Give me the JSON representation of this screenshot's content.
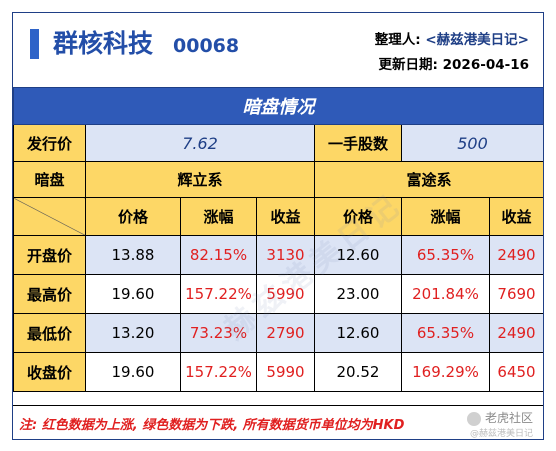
{
  "header": {
    "company": "群核科技",
    "code": "00068",
    "organizer_label": "整理人:",
    "organizer": "<赫兹港美日记>",
    "updated_label": "更新日期:",
    "updated_date": "2026-04-16"
  },
  "table": {
    "banner": "暗盘情况",
    "issue_price_label": "发行价",
    "issue_price": "7.62",
    "lot_label": "一手股数",
    "lot_size": "500",
    "dark_label": "暗盘",
    "broker_a": "辉立系",
    "broker_b": "富途系",
    "col_price": "价格",
    "col_change": "涨幅",
    "col_profit": "收益",
    "rows": [
      {
        "label": "开盘价",
        "a": [
          "13.88",
          "82.15%",
          "3130"
        ],
        "b": [
          "12.60",
          "65.35%",
          "2490"
        ]
      },
      {
        "label": "最高价",
        "a": [
          "19.60",
          "157.22%",
          "5990"
        ],
        "b": [
          "23.00",
          "201.84%",
          "7690"
        ]
      },
      {
        "label": "最低价",
        "a": [
          "13.20",
          "73.23%",
          "2790"
        ],
        "b": [
          "12.60",
          "65.35%",
          "2490"
        ]
      },
      {
        "label": "收盘价",
        "a": [
          "19.60",
          "157.22%",
          "5990"
        ],
        "b": [
          "20.52",
          "169.29%",
          "6450"
        ]
      }
    ]
  },
  "footer": {
    "note": "注: 红色数据为上涨, 绿色数据为下跌, 所有数据货币单位均为HKD",
    "brand": "老虎社区",
    "brand_sub": "@赫兹港美日记"
  },
  "watermark": "赫兹港美日记",
  "colors": {
    "primary": "#2f5ab8",
    "header_yellow": "#fdd766",
    "row_blue": "#dce4f5",
    "up_red": "#e02020"
  }
}
